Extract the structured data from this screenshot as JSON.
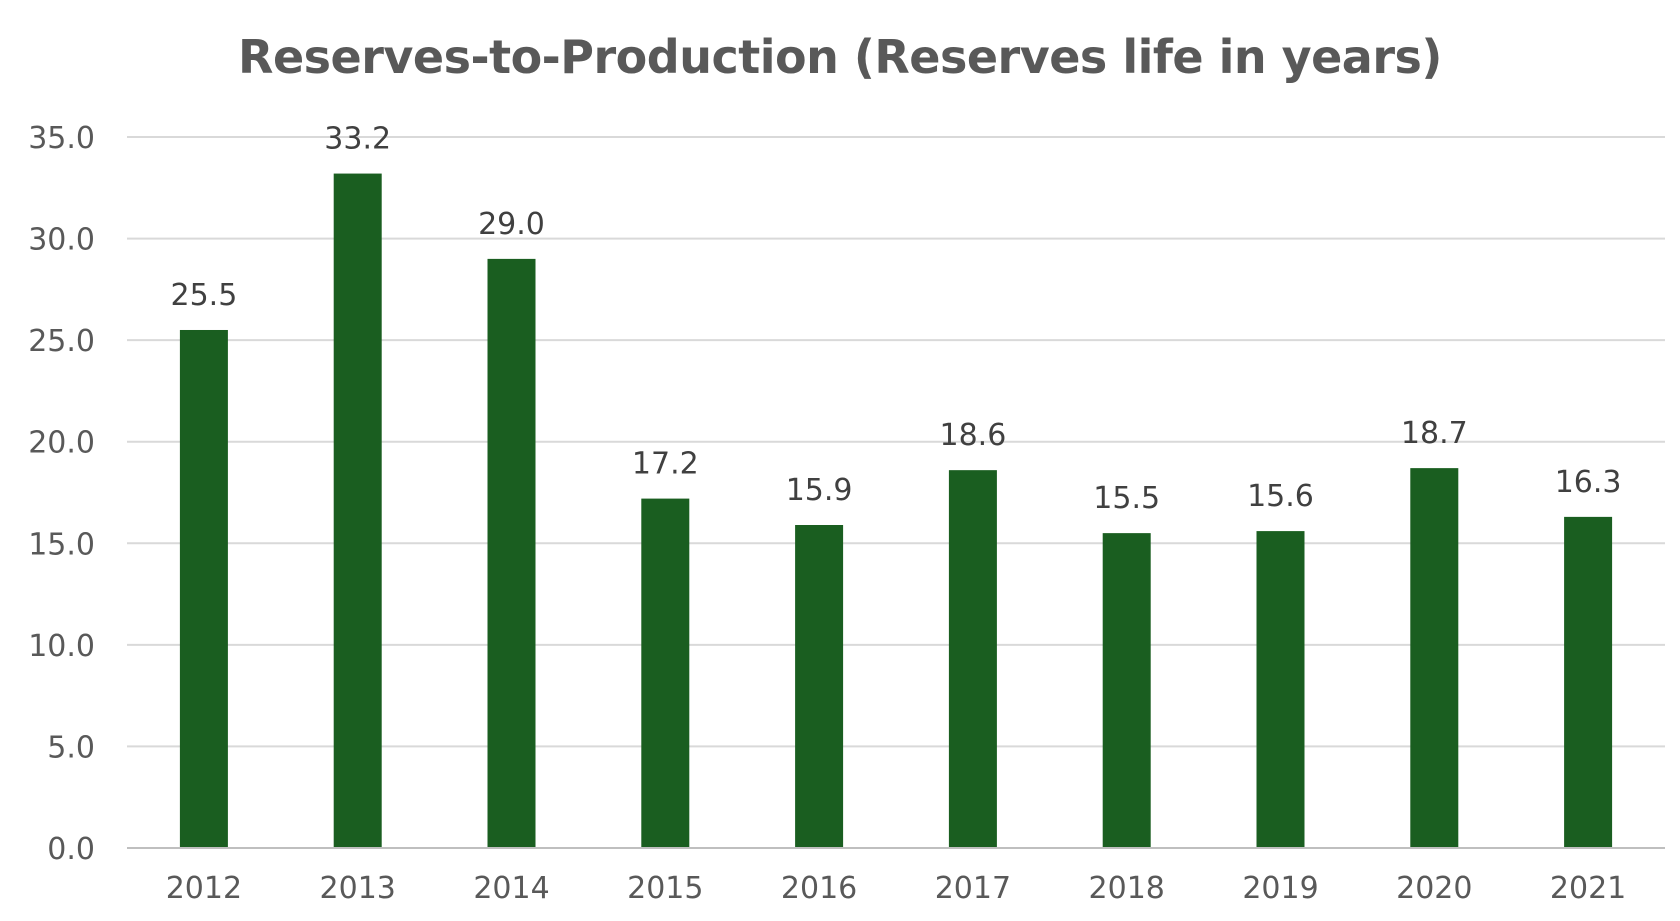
{
  "chart_data": {
    "type": "bar",
    "title": "Reserves-to-Production (Reserves life in years)",
    "xlabel": "",
    "ylabel": "",
    "categories": [
      "2012",
      "2013",
      "2014",
      "2015",
      "2016",
      "2017",
      "2018",
      "2019",
      "2020",
      "2021"
    ],
    "values": [
      25.5,
      33.2,
      29.0,
      17.2,
      15.9,
      18.6,
      15.5,
      15.6,
      18.7,
      16.3
    ],
    "data_labels": [
      "25.5",
      "33.2",
      "29.0",
      "17.2",
      "15.9",
      "18.6",
      "15.5",
      "15.6",
      "18.7",
      "16.3"
    ],
    "ylim": [
      0,
      35
    ],
    "yticks": [
      "0.0",
      "5.0",
      "10.0",
      "15.0",
      "20.0",
      "25.0",
      "30.0",
      "35.0"
    ],
    "grid": true,
    "legend": "none",
    "bar_color": "#1a5e20",
    "grid_color": "#d9d9d9"
  }
}
